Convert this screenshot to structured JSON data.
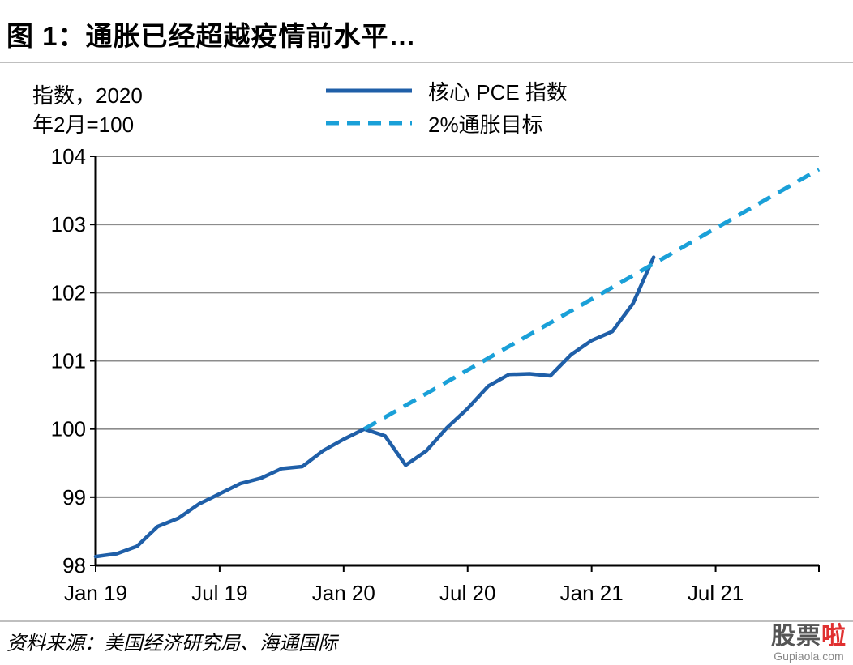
{
  "title": "图 1：通胀已经超越疫情前水平…",
  "y_unit": [
    "指数，2020",
    "年2月=100"
  ],
  "source": "资料来源：美国经济研究局、海通国际",
  "watermark": {
    "main": "股票",
    "accent": "啦",
    "sub": "Gupiaola.com"
  },
  "chart_data": {
    "type": "line",
    "title": "",
    "xlabel": "",
    "ylabel": "指数，2020年2月=100",
    "ylim": [
      98,
      104
    ],
    "yticks": [
      98,
      99,
      100,
      101,
      102,
      103,
      104
    ],
    "xlim": [
      "2019-01",
      "2021-12"
    ],
    "xticks": [
      {
        "label": "Jan 19",
        "x": "2019-01"
      },
      {
        "label": "Jul 19",
        "x": "2019-07"
      },
      {
        "label": "Jan 20",
        "x": "2020-01"
      },
      {
        "label": "Jul 20",
        "x": "2020-07"
      },
      {
        "label": "Jan 21",
        "x": "2021-01"
      },
      {
        "label": "Jul 21",
        "x": "2021-07"
      }
    ],
    "grid": true,
    "legend_position": "top",
    "series": [
      {
        "name": "核心 PCE 指数",
        "style": "solid",
        "color": "#1f5fa8",
        "points": [
          [
            "2019-01",
            98.13
          ],
          [
            "2019-02",
            98.17
          ],
          [
            "2019-03",
            98.28
          ],
          [
            "2019-04",
            98.57
          ],
          [
            "2019-05",
            98.69
          ],
          [
            "2019-06",
            98.9
          ],
          [
            "2019-07",
            99.05
          ],
          [
            "2019-08",
            99.2
          ],
          [
            "2019-09",
            99.28
          ],
          [
            "2019-10",
            99.42
          ],
          [
            "2019-11",
            99.45
          ],
          [
            "2019-12",
            99.68
          ],
          [
            "2020-01",
            99.85
          ],
          [
            "2020-02",
            100.0
          ],
          [
            "2020-03",
            99.9
          ],
          [
            "2020-04",
            99.47
          ],
          [
            "2020-05",
            99.68
          ],
          [
            "2020-06",
            100.02
          ],
          [
            "2020-07",
            100.3
          ],
          [
            "2020-08",
            100.63
          ],
          [
            "2020-09",
            100.8
          ],
          [
            "2020-10",
            100.81
          ],
          [
            "2020-11",
            100.78
          ],
          [
            "2020-12",
            101.09
          ],
          [
            "2021-01",
            101.3
          ],
          [
            "2021-02",
            101.43
          ],
          [
            "2021-03",
            101.84
          ],
          [
            "2021-04",
            102.52
          ]
        ]
      },
      {
        "name": "2%通胀目标",
        "style": "dashed",
        "color": "#1aa0d8",
        "points": [
          [
            "2020-02",
            100.0
          ],
          [
            "2021-12",
            103.81
          ]
        ]
      }
    ]
  }
}
